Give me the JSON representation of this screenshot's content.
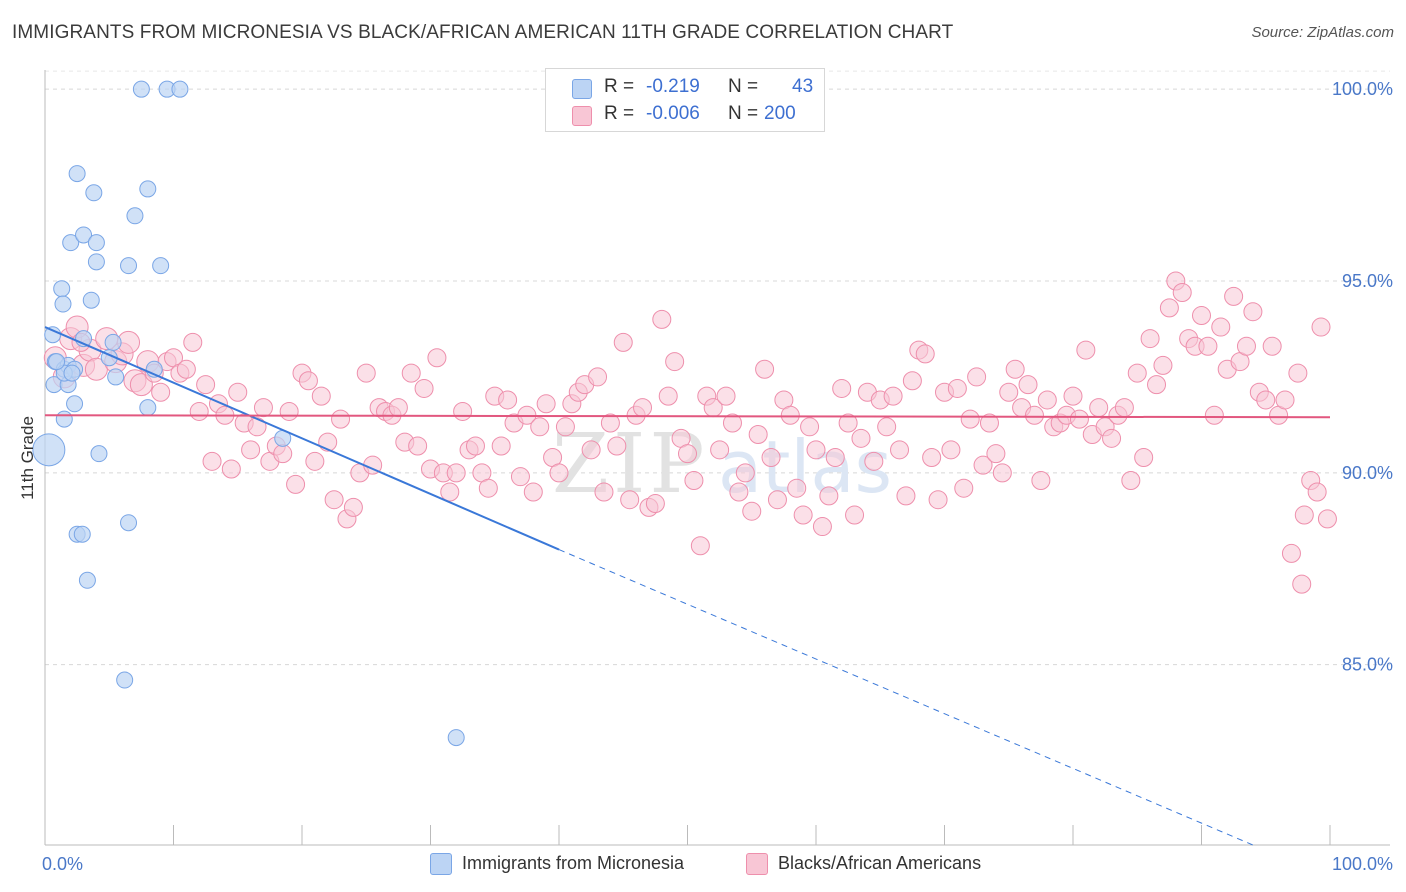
{
  "header": {
    "title": "IMMIGRANTS FROM MICRONESIA VS BLACK/AFRICAN AMERICAN 11TH GRADE CORRELATION CHART",
    "source": "Source: ZipAtlas.com"
  },
  "watermark": "ZIPatlas",
  "legend": {
    "rows": [
      {
        "r_label": "R =",
        "r_value": "-0.219",
        "n_label": "N =",
        "n_value": "43",
        "color": "#a9c6f0"
      },
      {
        "r_label": "R =",
        "r_value": "-0.006",
        "n_label": "N =",
        "n_value": "200",
        "color": "#f5b9cb"
      }
    ]
  },
  "bottom_legend": [
    {
      "label": "Immigrants from Micronesia",
      "color": "#a9c6f0"
    },
    {
      "label": "Blacks/African Americans",
      "color": "#f5b9cb"
    }
  ],
  "chart_data": {
    "type": "scatter",
    "title": "IMMIGRANTS FROM MICRONESIA VS BLACK/AFRICAN AMERICAN 11TH GRADE CORRELATION CHART",
    "xlabel": "",
    "ylabel": "11th Grade",
    "xlim": [
      0,
      100
    ],
    "ylim": [
      80.3,
      100.5
    ],
    "x_tick_labels": [
      "0.0%",
      "100.0%"
    ],
    "y_ticks": [
      85,
      90,
      95,
      100
    ],
    "y_tick_labels": [
      "85.0%",
      "90.0%",
      "95.0%",
      "100.0%"
    ],
    "grid": true,
    "legend_position": "top-center",
    "series": [
      {
        "name": "Immigrants from Micronesia",
        "color": "#7aa6e6",
        "fill": "#bcd4f4",
        "trend": {
          "x0": 0,
          "y0": 93.8,
          "x1": 40,
          "y1": 88.0,
          "dashed_to_x": 94,
          "dashed_to_y": 80.3
        },
        "points": [
          [
            7.5,
            100
          ],
          [
            9.5,
            100
          ],
          [
            10.5,
            100
          ],
          [
            2.5,
            97.8
          ],
          [
            3.8,
            97.3
          ],
          [
            8,
            97.4
          ],
          [
            7,
            96.7
          ],
          [
            2,
            96
          ],
          [
            3,
            96.2
          ],
          [
            4,
            96
          ],
          [
            4,
            95.5
          ],
          [
            6.5,
            95.4
          ],
          [
            9,
            95.4
          ],
          [
            1.3,
            94.8
          ],
          [
            1.4,
            94.4
          ],
          [
            3.6,
            94.5
          ],
          [
            0.6,
            93.6
          ],
          [
            3,
            93.5
          ],
          [
            5.3,
            93.4
          ],
          [
            0.8,
            92.9
          ],
          [
            1.5,
            92.7
          ],
          [
            1.8,
            92.8
          ],
          [
            5,
            93
          ],
          [
            2.3,
            92.7
          ],
          [
            0.7,
            92.3
          ],
          [
            1.8,
            92.3
          ],
          [
            8.5,
            92.7
          ],
          [
            5.5,
            92.5
          ],
          [
            2.3,
            91.8
          ],
          [
            8,
            91.7
          ],
          [
            1.5,
            91.4
          ],
          [
            0.3,
            90.6
          ],
          [
            4.2,
            90.5
          ],
          [
            18.5,
            90.9
          ],
          [
            6.5,
            88.7
          ],
          [
            2.5,
            88.4
          ],
          [
            2.9,
            88.4
          ],
          [
            3.3,
            87.2
          ],
          [
            6.2,
            84.6
          ],
          [
            32,
            83.1
          ],
          [
            1.5,
            92.6
          ],
          [
            2.1,
            92.6
          ],
          [
            0.9,
            92.9
          ]
        ]
      },
      {
        "name": "Blacks/African Americans",
        "color": "#ee8fac",
        "fill": "#f8c6d5",
        "trend": {
          "x0": 0,
          "y0": 91.5,
          "x1": 100,
          "y1": 91.45
        },
        "points": [
          [
            0.8,
            93.0
          ],
          [
            1.5,
            92.5
          ],
          [
            2.0,
            93.5
          ],
          [
            2.5,
            93.8
          ],
          [
            3.0,
            92.8
          ],
          [
            3.5,
            93.2
          ],
          [
            4.0,
            92.7
          ],
          [
            4.8,
            93.5
          ],
          [
            5.5,
            92.9
          ],
          [
            6.0,
            93.1
          ],
          [
            6.5,
            93.4
          ],
          [
            7.0,
            92.4
          ],
          [
            7.5,
            92.3
          ],
          [
            8.0,
            92.9
          ],
          [
            8.5,
            92.6
          ],
          [
            9.0,
            92.1
          ],
          [
            9.5,
            92.9
          ],
          [
            10.0,
            93.0
          ],
          [
            10.5,
            92.6
          ],
          [
            11.0,
            92.7
          ],
          [
            11.5,
            93.4
          ],
          [
            12.0,
            91.6
          ],
          [
            12.5,
            92.3
          ],
          [
            13.0,
            90.3
          ],
          [
            13.5,
            91.8
          ],
          [
            14.0,
            91.5
          ],
          [
            14.5,
            90.1
          ],
          [
            15.0,
            92.1
          ],
          [
            15.5,
            91.3
          ],
          [
            16.0,
            90.6
          ],
          [
            16.5,
            91.2
          ],
          [
            17.0,
            91.7
          ],
          [
            17.5,
            90.3
          ],
          [
            18.0,
            90.7
          ],
          [
            18.5,
            90.5
          ],
          [
            19.0,
            91.6
          ],
          [
            19.5,
            89.7
          ],
          [
            20.0,
            92.6
          ],
          [
            20.5,
            92.4
          ],
          [
            21.0,
            90.3
          ],
          [
            21.5,
            92.0
          ],
          [
            22.0,
            90.8
          ],
          [
            22.5,
            89.3
          ],
          [
            23.0,
            91.4
          ],
          [
            23.5,
            88.8
          ],
          [
            24.0,
            89.1
          ],
          [
            24.5,
            90.0
          ],
          [
            25.0,
            92.6
          ],
          [
            25.5,
            90.2
          ],
          [
            26.0,
            91.7
          ],
          [
            26.5,
            91.6
          ],
          [
            27.0,
            91.5
          ],
          [
            27.5,
            91.7
          ],
          [
            28.0,
            90.8
          ],
          [
            28.5,
            92.6
          ],
          [
            29.0,
            90.7
          ],
          [
            29.5,
            92.2
          ],
          [
            30.0,
            90.1
          ],
          [
            30.5,
            93.0
          ],
          [
            31.0,
            90.0
          ],
          [
            31.5,
            89.5
          ],
          [
            32.0,
            90.0
          ],
          [
            32.5,
            91.6
          ],
          [
            33.0,
            90.6
          ],
          [
            33.5,
            90.7
          ],
          [
            34.0,
            90.0
          ],
          [
            34.5,
            89.6
          ],
          [
            35.0,
            92.0
          ],
          [
            35.5,
            90.7
          ],
          [
            36.0,
            91.9
          ],
          [
            36.5,
            91.3
          ],
          [
            37.0,
            89.9
          ],
          [
            37.5,
            91.5
          ],
          [
            38.0,
            89.5
          ],
          [
            38.5,
            91.2
          ],
          [
            39.0,
            91.8
          ],
          [
            39.5,
            90.4
          ],
          [
            40.0,
            90.0
          ],
          [
            40.5,
            91.2
          ],
          [
            41.0,
            91.8
          ],
          [
            41.5,
            92.1
          ],
          [
            42.0,
            92.3
          ],
          [
            42.5,
            90.6
          ],
          [
            43.0,
            92.5
          ],
          [
            43.5,
            89.5
          ],
          [
            44.0,
            91.3
          ],
          [
            44.5,
            90.7
          ],
          [
            45.0,
            93.4
          ],
          [
            45.5,
            89.3
          ],
          [
            46.0,
            91.5
          ],
          [
            46.5,
            91.7
          ],
          [
            47.0,
            89.1
          ],
          [
            47.5,
            89.2
          ],
          [
            48.0,
            94.0
          ],
          [
            48.5,
            92.0
          ],
          [
            49.0,
            92.9
          ],
          [
            49.5,
            90.9
          ],
          [
            50.0,
            90.5
          ],
          [
            50.5,
            89.8
          ],
          [
            51.0,
            88.1
          ],
          [
            51.5,
            92.0
          ],
          [
            52.0,
            91.7
          ],
          [
            52.5,
            90.6
          ],
          [
            53.0,
            92.0
          ],
          [
            53.5,
            91.3
          ],
          [
            54.0,
            89.5
          ],
          [
            54.5,
            90.0
          ],
          [
            55.0,
            89.0
          ],
          [
            55.5,
            91.0
          ],
          [
            56.0,
            92.7
          ],
          [
            56.5,
            90.4
          ],
          [
            57.0,
            89.3
          ],
          [
            57.5,
            91.9
          ],
          [
            58.0,
            91.5
          ],
          [
            58.5,
            89.6
          ],
          [
            59.0,
            88.9
          ],
          [
            59.5,
            91.2
          ],
          [
            60.0,
            90.6
          ],
          [
            60.5,
            88.6
          ],
          [
            61.0,
            89.4
          ],
          [
            61.5,
            90.4
          ],
          [
            62.0,
            92.2
          ],
          [
            62.5,
            91.3
          ],
          [
            63.0,
            88.9
          ],
          [
            63.5,
            90.9
          ],
          [
            64.0,
            92.1
          ],
          [
            64.5,
            90.3
          ],
          [
            65.0,
            91.9
          ],
          [
            65.5,
            91.2
          ],
          [
            66.0,
            92.0
          ],
          [
            66.5,
            90.6
          ],
          [
            67.0,
            89.4
          ],
          [
            67.5,
            92.4
          ],
          [
            68.0,
            93.2
          ],
          [
            68.5,
            93.1
          ],
          [
            69.0,
            90.4
          ],
          [
            69.5,
            89.3
          ],
          [
            70.0,
            92.1
          ],
          [
            70.5,
            90.6
          ],
          [
            71.0,
            92.2
          ],
          [
            71.5,
            89.6
          ],
          [
            72.0,
            91.4
          ],
          [
            72.5,
            92.5
          ],
          [
            73.0,
            90.2
          ],
          [
            73.5,
            91.3
          ],
          [
            74.0,
            90.5
          ],
          [
            74.5,
            90.0
          ],
          [
            75.0,
            92.1
          ],
          [
            75.5,
            92.7
          ],
          [
            76.0,
            91.7
          ],
          [
            76.5,
            92.3
          ],
          [
            77.0,
            91.5
          ],
          [
            77.5,
            89.8
          ],
          [
            78.0,
            91.9
          ],
          [
            78.5,
            91.2
          ],
          [
            79.0,
            91.3
          ],
          [
            79.5,
            91.5
          ],
          [
            80.0,
            92.0
          ],
          [
            80.5,
            91.4
          ],
          [
            81.0,
            93.2
          ],
          [
            81.5,
            91.0
          ],
          [
            82.0,
            91.7
          ],
          [
            82.5,
            91.2
          ],
          [
            83.0,
            90.9
          ],
          [
            83.5,
            91.5
          ],
          [
            84.0,
            91.7
          ],
          [
            84.5,
            89.8
          ],
          [
            85.0,
            92.6
          ],
          [
            85.5,
            90.4
          ],
          [
            86.0,
            93.5
          ],
          [
            86.5,
            92.3
          ],
          [
            87.0,
            92.8
          ],
          [
            87.5,
            94.3
          ],
          [
            88.0,
            95.0
          ],
          [
            88.5,
            94.7
          ],
          [
            89.0,
            93.5
          ],
          [
            89.5,
            93.3
          ],
          [
            90.0,
            94.1
          ],
          [
            90.5,
            93.3
          ],
          [
            91.0,
            91.5
          ],
          [
            91.5,
            93.8
          ],
          [
            92.0,
            92.7
          ],
          [
            92.5,
            94.6
          ],
          [
            93.0,
            92.9
          ],
          [
            93.5,
            93.3
          ],
          [
            94.0,
            94.2
          ],
          [
            94.5,
            92.1
          ],
          [
            95.0,
            91.9
          ],
          [
            95.5,
            93.3
          ],
          [
            96.0,
            91.5
          ],
          [
            96.5,
            91.9
          ],
          [
            97.0,
            87.9
          ],
          [
            97.5,
            92.6
          ],
          [
            97.8,
            87.1
          ],
          [
            98.0,
            88.9
          ],
          [
            98.5,
            89.8
          ],
          [
            99.0,
            89.5
          ],
          [
            99.3,
            93.8
          ],
          [
            99.8,
            88.8
          ],
          [
            2.8,
            93.4
          ]
        ]
      }
    ]
  }
}
